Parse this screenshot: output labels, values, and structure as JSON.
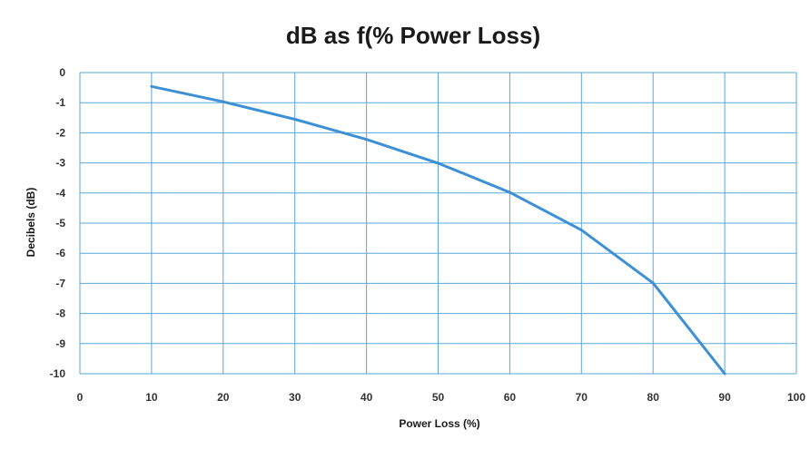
{
  "chart_data": {
    "type": "line",
    "title": "dB as f(% Power Loss)",
    "xlabel": "Power Loss (%)",
    "ylabel": "Decibels (dB)",
    "xlim": [
      0,
      100
    ],
    "ylim": [
      -10,
      0
    ],
    "x_ticks": [
      "0",
      "10",
      "20",
      "30",
      "40",
      "50",
      "60",
      "70",
      "80",
      "90",
      "100"
    ],
    "y_ticks": [
      "0",
      "-1",
      "-2",
      "-3",
      "-4",
      "-5",
      "-6",
      "-7",
      "-8",
      "-9",
      "-10"
    ],
    "grid": true,
    "legend": "none",
    "line_color": "#3d8fd6",
    "grid_color": "#5aa7dc",
    "series": [
      {
        "x": [
          10,
          20,
          30,
          40,
          50,
          60,
          70,
          80,
          90
        ],
        "values": [
          -0.46,
          -0.97,
          -1.55,
          -2.22,
          -3.01,
          -3.98,
          -5.23,
          -6.99,
          -10.0
        ]
      }
    ]
  }
}
